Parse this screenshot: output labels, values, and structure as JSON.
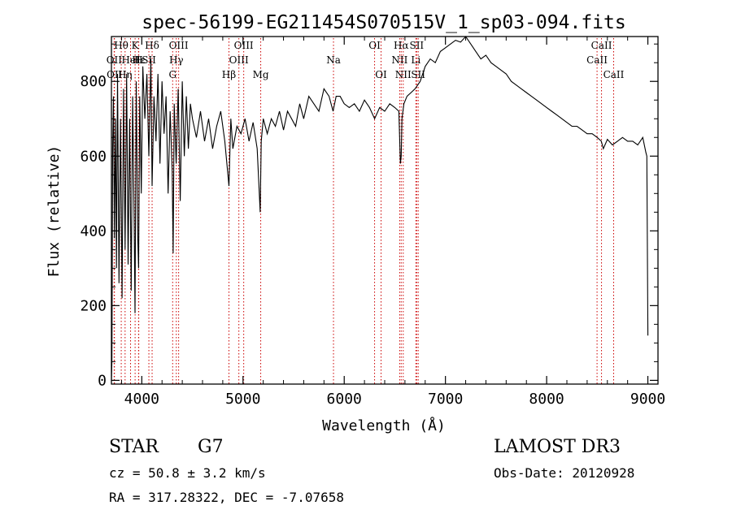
{
  "colors": {
    "background": "#ffffff",
    "spectrum": "#000000",
    "line_marker": "#cc0000",
    "axis": "#000000"
  },
  "info": {
    "object_class": "STAR",
    "subclass": "G7",
    "survey": "LAMOST DR3",
    "redshift": "cz = 50.8 ± 3.2 km/s",
    "obs_date": "Obs-Date: 20120928",
    "coords": "RA = 317.28322, DEC =  -7.07658"
  },
  "chart_data": {
    "type": "line",
    "title": "spec-56199-EG211454S070515V_1_sp03-094.fits",
    "xlabel": "Wavelength (Å)",
    "ylabel": "Flux (relative)",
    "xlim": [
      3700,
      9100
    ],
    "ylim": [
      -10,
      920
    ],
    "xticks": [
      4000,
      5000,
      6000,
      7000,
      8000,
      9000
    ],
    "yticks": [
      0,
      200,
      400,
      600,
      800
    ],
    "x_minor_step": 200,
    "y_minor_step": 50,
    "spectrum": {
      "x": [
        3700,
        3705,
        3712,
        3720,
        3730,
        3740,
        3750,
        3760,
        3775,
        3790,
        3805,
        3820,
        3835,
        3850,
        3865,
        3880,
        3895,
        3910,
        3925,
        3933,
        3945,
        3960,
        3968,
        3980,
        3995,
        4010,
        4030,
        4050,
        4070,
        4090,
        4102,
        4120,
        4140,
        4160,
        4180,
        4200,
        4220,
        4240,
        4260,
        4280,
        4300,
        4310,
        4320,
        4340,
        4360,
        4380,
        4400,
        4420,
        4440,
        4460,
        4480,
        4500,
        4540,
        4580,
        4620,
        4660,
        4700,
        4740,
        4780,
        4820,
        4861,
        4880,
        4900,
        4940,
        4980,
        5020,
        5060,
        5100,
        5140,
        5170,
        5180,
        5200,
        5240,
        5280,
        5320,
        5360,
        5400,
        5440,
        5480,
        5520,
        5560,
        5600,
        5650,
        5700,
        5750,
        5800,
        5850,
        5890,
        5920,
        5960,
        6000,
        6050,
        6100,
        6150,
        6200,
        6250,
        6300,
        6350,
        6400,
        6450,
        6500,
        6540,
        6555,
        6563,
        6570,
        6590,
        6620,
        6660,
        6700,
        6750,
        6800,
        6850,
        6900,
        6950,
        7000,
        7050,
        7100,
        7150,
        7200,
        7250,
        7300,
        7350,
        7400,
        7450,
        7500,
        7550,
        7600,
        7650,
        7700,
        7750,
        7800,
        7850,
        7900,
        7950,
        8000,
        8050,
        8100,
        8150,
        8200,
        8250,
        8300,
        8350,
        8400,
        8450,
        8500,
        8540,
        8560,
        8600,
        8650,
        8700,
        8750,
        8800,
        8850,
        8900,
        8950,
        8980,
        8990,
        9000
      ],
      "y": [
        0,
        50,
        620,
        760,
        380,
        700,
        300,
        820,
        260,
        700,
        220,
        780,
        350,
        820,
        310,
        700,
        240,
        760,
        420,
        180,
        800,
        380,
        300,
        760,
        500,
        840,
        700,
        820,
        600,
        860,
        520,
        760,
        640,
        820,
        580,
        800,
        660,
        760,
        500,
        720,
        560,
        340,
        740,
        580,
        780,
        480,
        800,
        600,
        760,
        620,
        740,
        700,
        650,
        720,
        640,
        700,
        620,
        680,
        720,
        640,
        520,
        700,
        620,
        680,
        660,
        700,
        640,
        690,
        620,
        450,
        640,
        700,
        660,
        700,
        680,
        720,
        670,
        720,
        700,
        680,
        740,
        700,
        760,
        740,
        720,
        780,
        760,
        720,
        760,
        760,
        740,
        730,
        740,
        720,
        750,
        730,
        700,
        730,
        720,
        740,
        730,
        720,
        580,
        600,
        700,
        740,
        760,
        770,
        780,
        800,
        840,
        860,
        850,
        880,
        890,
        900,
        910,
        905,
        920,
        900,
        880,
        860,
        870,
        850,
        840,
        830,
        820,
        800,
        790,
        780,
        770,
        760,
        750,
        740,
        730,
        720,
        710,
        700,
        690,
        680,
        680,
        670,
        660,
        660,
        650,
        640,
        620,
        645,
        630,
        640,
        650,
        640,
        640,
        630,
        650,
        610,
        600,
        120
      ]
    },
    "lines": [
      {
        "label": "Hθ",
        "x": 3797,
        "row": 0
      },
      {
        "label": "OII",
        "x": 3727,
        "row": 1
      },
      {
        "label": "OII",
        "x": 3730,
        "row": 2
      },
      {
        "label": "Hη",
        "x": 3835,
        "row": 2
      },
      {
        "label": "K",
        "x": 3934,
        "row": 0
      },
      {
        "label": "HeI",
        "x": 3889,
        "row": 1
      },
      {
        "label": "H",
        "x": 3968,
        "row": 1
      },
      {
        "label": "Hε",
        "x": 3970,
        "row": 1
      },
      {
        "label": "SII",
        "x": 4070,
        "row": 1
      },
      {
        "label": "Hδ",
        "x": 4102,
        "row": 0
      },
      {
        "label": "OIII",
        "x": 4364,
        "row": 0
      },
      {
        "label": "Hγ",
        "x": 4341,
        "row": 1
      },
      {
        "label": "G",
        "x": 4305,
        "row": 2
      },
      {
        "label": "Hβ",
        "x": 4861,
        "row": 2
      },
      {
        "label": "OIII",
        "x": 4959,
        "row": 1
      },
      {
        "label": "OIII",
        "x": 5007,
        "row": 0
      },
      {
        "label": "Mg",
        "x": 5175,
        "row": 2
      },
      {
        "label": "Na",
        "x": 5894,
        "row": 1
      },
      {
        "label": "OI",
        "x": 6300,
        "row": 0
      },
      {
        "label": "OI",
        "x": 6364,
        "row": 2
      },
      {
        "label": "Hα",
        "x": 6563,
        "row": 0
      },
      {
        "label": "NII",
        "x": 6548,
        "row": 1
      },
      {
        "label": "NII",
        "x": 6583,
        "row": 2
      },
      {
        "label": "SII",
        "x": 6716,
        "row": 0
      },
      {
        "label": "Li",
        "x": 6708,
        "row": 1
      },
      {
        "label": "SII",
        "x": 6731,
        "row": 2
      },
      {
        "label": "CaII",
        "x": 8542,
        "row": 0
      },
      {
        "label": "CaII",
        "x": 8498,
        "row": 1
      },
      {
        "label": "CaII",
        "x": 8662,
        "row": 2
      }
    ]
  }
}
